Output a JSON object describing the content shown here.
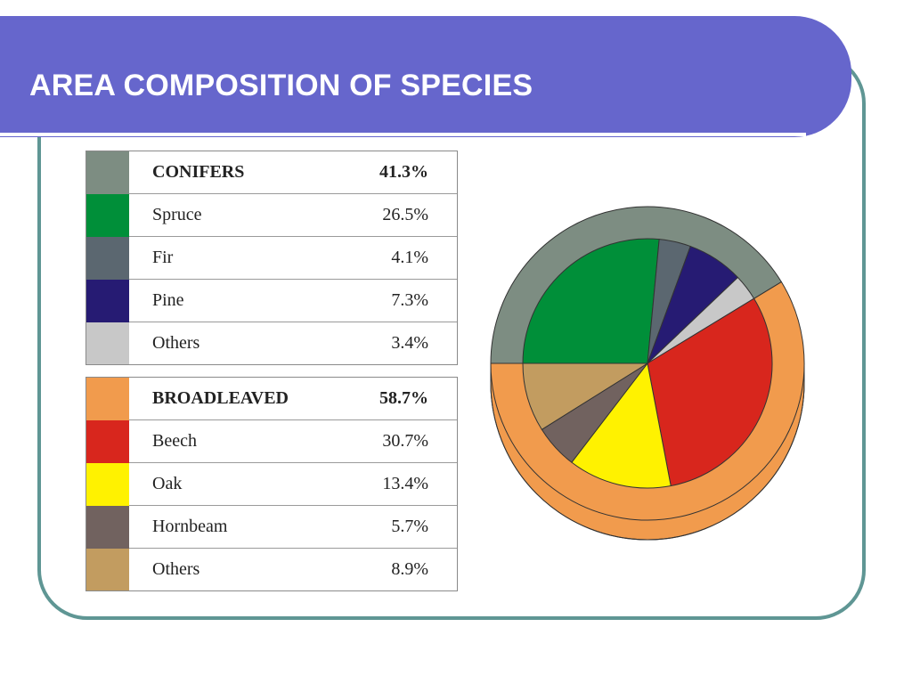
{
  "slide": {
    "title": "AREA COMPOSITION OF SPECIES"
  },
  "colors": {
    "title_bar": "#6666cc",
    "frame": "#5f9694",
    "conifers": "#7d8d82",
    "spruce": "#008f39",
    "fir": "#5b6770",
    "pine": "#261b73",
    "conifer_others": "#c8c8c8",
    "broadleaved": "#f19b4d",
    "beech": "#d8261d",
    "oak": "#fff200",
    "hornbeam": "#71625f",
    "broadleaved_others": "#c29c60"
  },
  "chart_data": {
    "type": "pie",
    "groups": [
      {
        "name": "CONIFERS",
        "percent": 41.3,
        "label": "41.3%",
        "color": "#7d8d82",
        "items": [
          {
            "name": "Spruce",
            "percent": 26.5,
            "label": "26.5%",
            "color": "#008f39"
          },
          {
            "name": "Fir",
            "percent": 4.1,
            "label": "4.1%",
            "color": "#5b6770"
          },
          {
            "name": "Pine",
            "percent": 7.3,
            "label": "7.3%",
            "color": "#261b73"
          },
          {
            "name": "Others",
            "percent": 3.4,
            "label": "3.4%",
            "color": "#c8c8c8"
          }
        ]
      },
      {
        "name": "BROADLEAVED",
        "percent": 58.7,
        "label": "58.7%",
        "color": "#f19b4d",
        "items": [
          {
            "name": "Beech",
            "percent": 30.7,
            "label": "30.7%",
            "color": "#d8261d"
          },
          {
            "name": "Oak",
            "percent": 13.4,
            "label": "13.4%",
            "color": "#fff200"
          },
          {
            "name": "Hornbeam",
            "percent": 5.7,
            "label": "5.7%",
            "color": "#71625f"
          },
          {
            "name": "Others",
            "percent": 8.9,
            "label": "8.9%",
            "color": "#c29c60"
          }
        ]
      }
    ]
  }
}
